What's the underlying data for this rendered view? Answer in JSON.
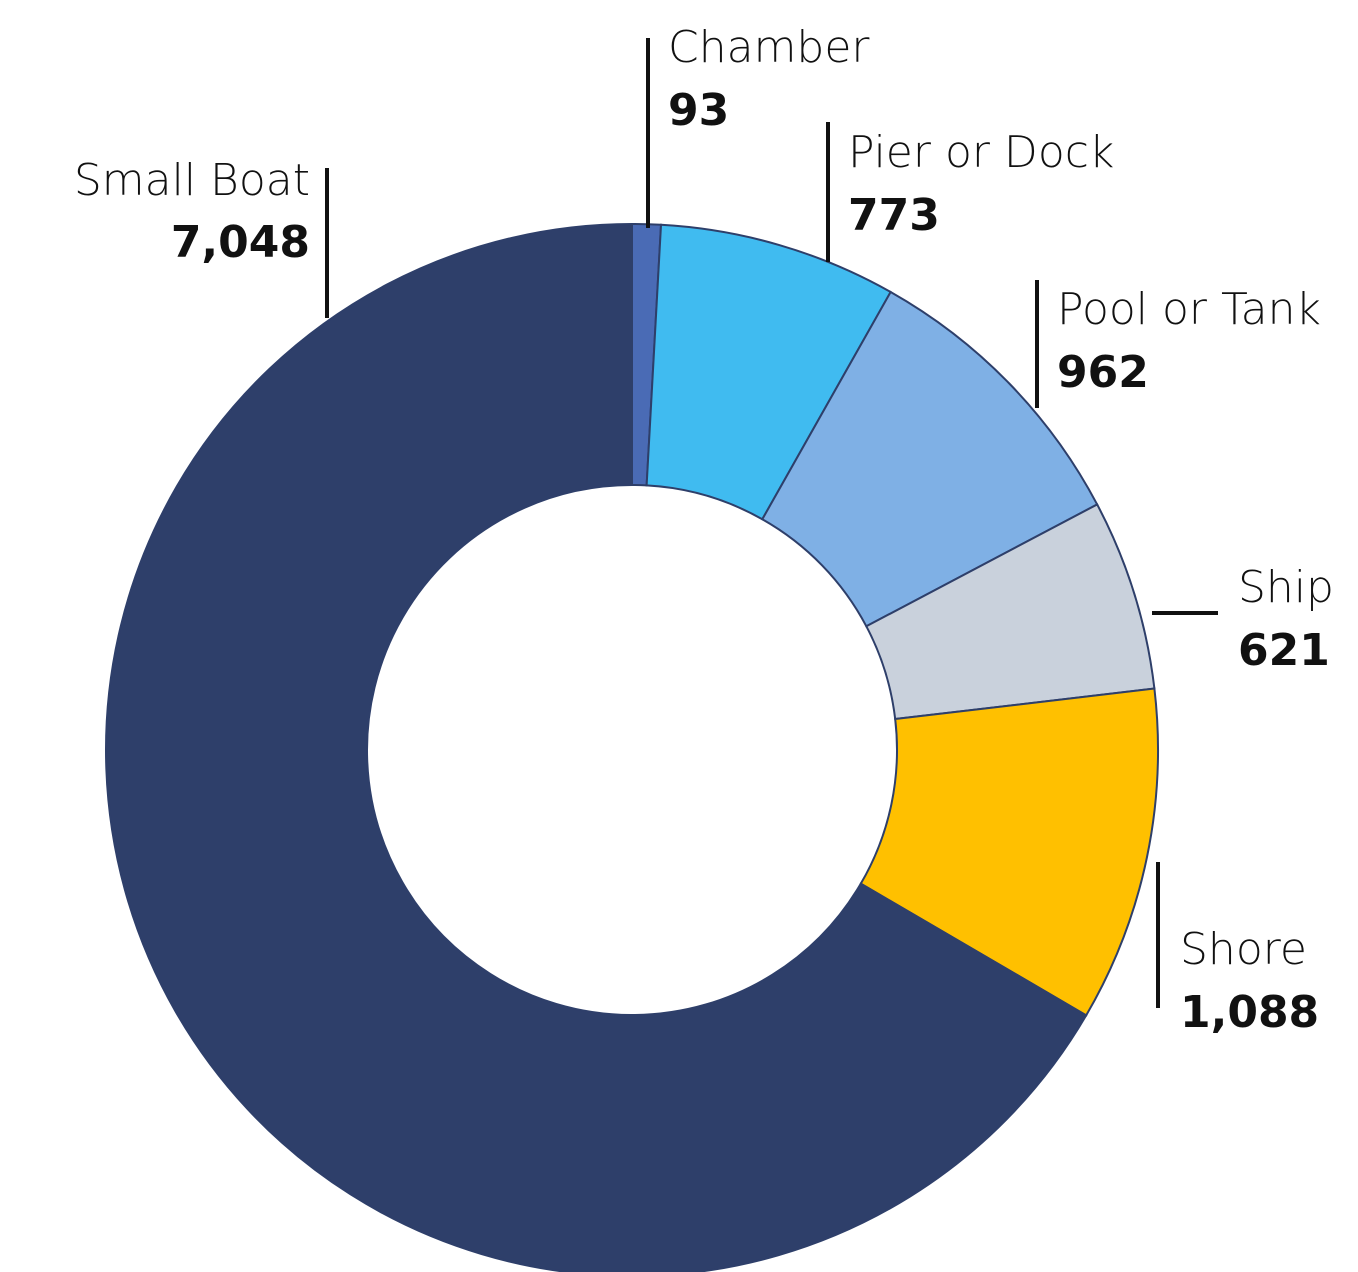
{
  "chart_data": {
    "type": "pie",
    "categories": [
      "Chamber",
      "Pier or Dock",
      "Pool or Tank",
      "Ship",
      "Shore",
      "Small Boat"
    ],
    "values": [
      93,
      773,
      962,
      621,
      1088,
      7048
    ],
    "value_labels": [
      "93",
      "773",
      "962",
      "621",
      "1,088",
      "7,048"
    ],
    "colors": [
      "#4a6bb5",
      "#40bbf0",
      "#7fb0e5",
      "#c9d1dc",
      "#ffc000",
      "#2e3f6a"
    ]
  }
}
